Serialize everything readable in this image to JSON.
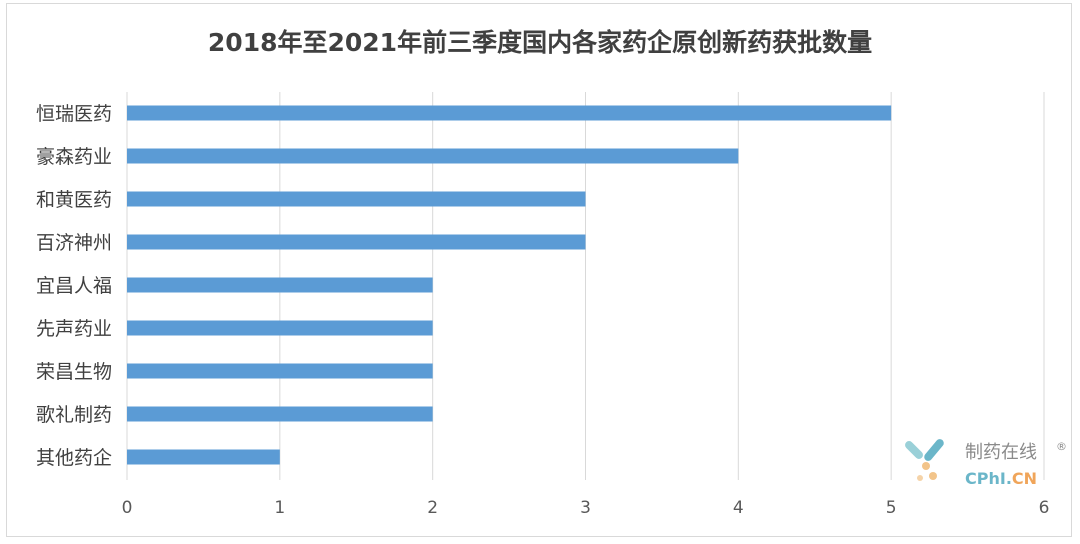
{
  "chart_data": {
    "type": "bar",
    "orientation": "horizontal",
    "title": "2018年至2021年前三季度国内各家药企原创新药获批数量",
    "categories": [
      "恒瑞医药",
      "豪森药业",
      "和黄医药",
      "百济神州",
      "宜昌人福",
      "先声药业",
      "荣昌生物",
      "歌礼制药",
      "其他药企"
    ],
    "values": [
      5,
      4,
      3,
      3,
      2,
      2,
      2,
      2,
      1
    ],
    "xlim": [
      0,
      6
    ],
    "xticks": [
      "0",
      "1",
      "2",
      "3",
      "4",
      "5",
      "6"
    ],
    "grid": true,
    "bar_color": "#5b9bd5"
  },
  "watermark": {
    "name_cn": "制药在线",
    "registered": "®",
    "name_en_left": "CPhI.",
    "name_en_right": "CN"
  }
}
